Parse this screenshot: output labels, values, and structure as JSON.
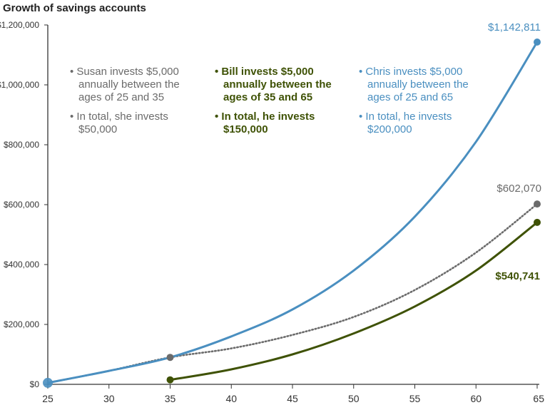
{
  "chart_data": {
    "type": "line",
    "title": "Growth of savings accounts",
    "xlabel": "",
    "ylabel": "",
    "xlim": [
      25,
      65
    ],
    "ylim": [
      0,
      1200000
    ],
    "x_ticks": [
      25,
      30,
      35,
      40,
      45,
      50,
      55,
      60,
      65
    ],
    "x_tick_labels": [
      "25",
      "30",
      "35",
      "40",
      "45",
      "50",
      "55",
      "60",
      "65"
    ],
    "y_ticks": [
      0,
      200000,
      400000,
      600000,
      800000,
      1000000,
      1200000
    ],
    "y_tick_labels": [
      "$0",
      "$200,000",
      "$400,000",
      "$600,000",
      "$800,000",
      "$1,000,000",
      "$1,200,000"
    ],
    "grid": false,
    "colors": {
      "chris": "#4a8fc0",
      "susan": "#6b6b6b",
      "bill": "#3f5206",
      "axis": "#333333"
    },
    "series": [
      {
        "key": "chris",
        "style": "solid",
        "x": [
          25,
          30,
          35,
          40,
          45,
          50,
          55,
          60,
          65
        ],
        "values": [
          5000,
          45000,
          90000,
          160000,
          250000,
          380000,
          560000,
          810000,
          1142811
        ]
      },
      {
        "key": "susan",
        "style": "dotted",
        "x": [
          25,
          30,
          35,
          40,
          45,
          50,
          55,
          60,
          65
        ],
        "values": [
          5000,
          45000,
          90000,
          120000,
          165000,
          225000,
          315000,
          440000,
          602070
        ]
      },
      {
        "key": "bill",
        "style": "solid",
        "x": [
          35,
          40,
          45,
          50,
          55,
          60,
          65
        ],
        "values": [
          15000,
          50000,
          100000,
          170000,
          260000,
          380000,
          540741
        ]
      }
    ],
    "end_labels": {
      "chris": "$1,142,811",
      "susan": "$602,070",
      "bill": "$540,741"
    },
    "annotations": {
      "susan": [
        "• Susan invests $5,000",
        "annually between the",
        "ages of 25 and 35",
        "• In total, she invests",
        "$50,000"
      ],
      "bill": [
        "• Bill invests $5,000",
        "annually between the",
        "ages of 35 and 65",
        "• In total, he invests",
        "$150,000"
      ],
      "chris": [
        "• Chris invests $5,000",
        "annually between the",
        "ages of 25 and 65",
        "• In total, he invests",
        "$200,000"
      ]
    }
  }
}
